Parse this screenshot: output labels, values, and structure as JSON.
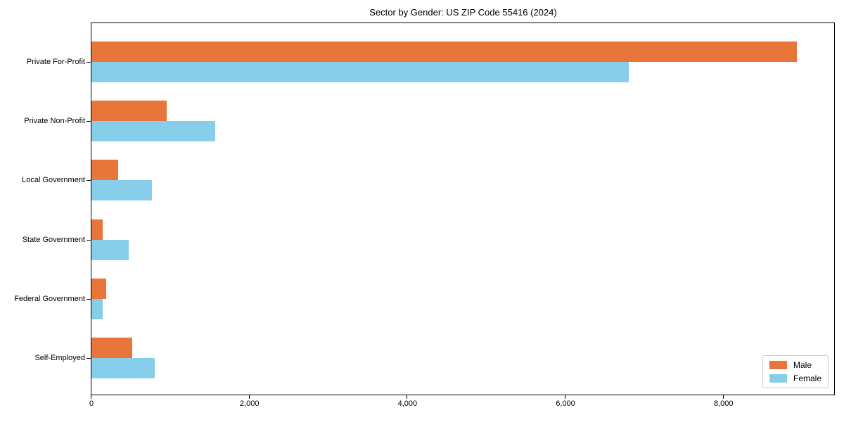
{
  "figure": {
    "kind": "static-chart-image"
  },
  "chart_data": {
    "type": "bar",
    "orientation": "horizontal",
    "title": "Sector by Gender: US ZIP Code 55416 (2024)",
    "categories": [
      "Private For-Profit",
      "Private Non-Profit",
      "Local Government",
      "State Government",
      "Federal Government",
      "Self-Employed"
    ],
    "series": [
      {
        "name": "Male",
        "color": "#e8763b",
        "values": [
          8925,
          950,
          340,
          140,
          185,
          515
        ]
      },
      {
        "name": "Female",
        "color": "#87ceeb",
        "values": [
          6800,
          1565,
          765,
          470,
          140,
          800
        ]
      }
    ],
    "xlabel": "",
    "ylabel": "",
    "xlim": [
      0,
      9400
    ],
    "xticks": [
      0,
      2000,
      4000,
      6000,
      8000
    ],
    "xtick_labels": [
      "0",
      "2,000",
      "4,000",
      "6,000",
      "8,000"
    ],
    "grid": false,
    "background": "#ffffff",
    "spine_color": "#000000",
    "legend": {
      "position": "lower right",
      "entries": [
        "Male",
        "Female"
      ]
    }
  }
}
